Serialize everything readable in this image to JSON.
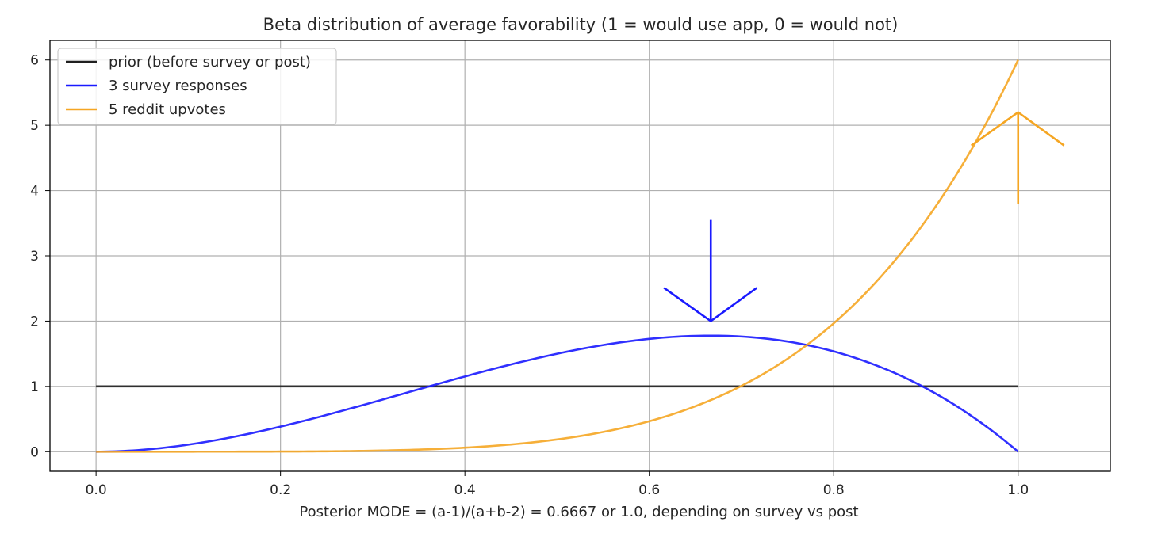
{
  "chart_data": {
    "type": "line",
    "title": "Beta distribution of average favorability (1 = would use app, 0 = would not)",
    "xlabel": "Posterior MODE = (a-1)/(a+b-2) = 0.6667 or 1.0, depending on survey vs post",
    "ylabel": "",
    "xlim": [
      -0.05,
      1.1
    ],
    "ylim": [
      -0.3,
      6.3
    ],
    "xticks": [
      "0.0",
      "0.2",
      "0.4",
      "0.6",
      "0.8",
      "1.0"
    ],
    "yticks": [
      "0",
      "1",
      "2",
      "3",
      "4",
      "5",
      "6"
    ],
    "grid": true,
    "legend_position": "upper left",
    "series": [
      {
        "name": "prior (before survey or post)",
        "color": "#1f1f1f",
        "alpha": 1,
        "beta": 1
      },
      {
        "name": "3 survey responses",
        "color": "#1a1aff",
        "alpha": 3,
        "beta": 2
      },
      {
        "name": "5 reddit upvotes",
        "color": "#f5a623",
        "alpha": 6,
        "beta": 1
      }
    ],
    "annotations": [
      {
        "type": "arrow",
        "series": "3 survey responses",
        "tip": [
          0.6667,
          2.0
        ],
        "tail": [
          0.6667,
          3.55
        ]
      },
      {
        "type": "arrow",
        "series": "5 reddit upvotes",
        "tip": [
          1.0,
          5.2
        ],
        "tail": [
          1.0,
          3.8
        ]
      }
    ]
  }
}
